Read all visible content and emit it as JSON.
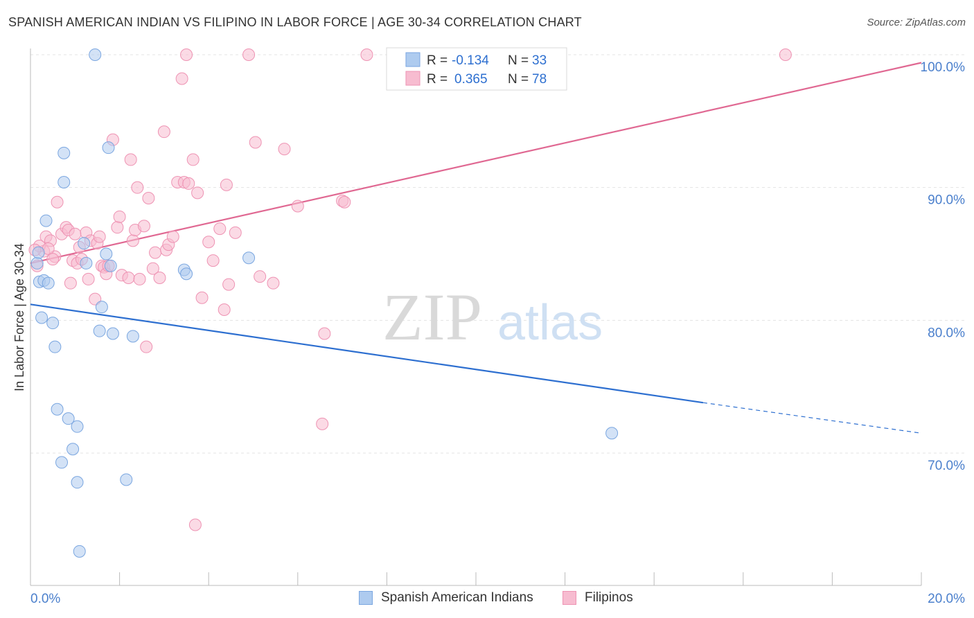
{
  "header": {
    "title": "SPANISH AMERICAN INDIAN VS FILIPINO IN LABOR FORCE | AGE 30-34 CORRELATION CHART",
    "source": "Source: ZipAtlas.com"
  },
  "watermark": {
    "zip": "ZIP",
    "atlas": "atlas"
  },
  "legend_stats": [
    {
      "r_label": "R =",
      "r_value": "-0.134",
      "n_label": "N =",
      "n_value": "33"
    },
    {
      "r_label": "R =",
      "r_value": "0.365",
      "n_label": "N =",
      "n_value": "78"
    }
  ],
  "colors": {
    "blue_fill": "#aecbef",
    "blue_stroke": "#7aa6e0",
    "blue_line": "#2d6fd0",
    "pink_fill": "#f7bcd0",
    "pink_stroke": "#ee93b3",
    "pink_line": "#e06892",
    "axis_label": "#4a7fcc",
    "grid": "#e3e3e3"
  },
  "chart_data": {
    "type": "scatter",
    "title": "SPANISH AMERICAN INDIAN VS FILIPINO IN LABOR FORCE | AGE 30-34 CORRELATION CHART",
    "xlabel": "",
    "ylabel": "In Labor Force | Age 30-34",
    "xlim": [
      0,
      20
    ],
    "ylim": [
      61,
      101
    ],
    "x_tick_labels": [
      "0.0%",
      "20.0%"
    ],
    "y_ticks": [
      70,
      80,
      90,
      100
    ],
    "y_tick_labels": [
      "70.0%",
      "80.0%",
      "90.0%",
      "100.0%"
    ],
    "grid": true,
    "legend_position": "bottom",
    "series": [
      {
        "name": "Spanish American Indians",
        "color": "#aecbef",
        "r": -0.134,
        "n": 33,
        "trend": {
          "x0": 0,
          "y0": 81.2,
          "x1": 15.1,
          "y1": 73.8,
          "dash_x1": 20,
          "dash_y1": 71.5
        },
        "points": [
          [
            0.15,
            84.3
          ],
          [
            0.2,
            82.9
          ],
          [
            0.3,
            83.0
          ],
          [
            0.4,
            82.8
          ],
          [
            0.25,
            80.2
          ],
          [
            0.5,
            79.8
          ],
          [
            0.55,
            78.0
          ],
          [
            0.35,
            87.5
          ],
          [
            0.75,
            92.6
          ],
          [
            0.75,
            90.4
          ],
          [
            1.45,
            100.0
          ],
          [
            1.75,
            93.0
          ],
          [
            1.2,
            85.8
          ],
          [
            1.25,
            84.3
          ],
          [
            1.7,
            85.0
          ],
          [
            1.8,
            84.1
          ],
          [
            1.6,
            81.0
          ],
          [
            1.55,
            79.2
          ],
          [
            1.85,
            79.0
          ],
          [
            2.3,
            78.8
          ],
          [
            3.45,
            83.8
          ],
          [
            3.5,
            83.5
          ],
          [
            4.9,
            84.7
          ],
          [
            0.6,
            73.3
          ],
          [
            0.85,
            72.6
          ],
          [
            1.05,
            72.0
          ],
          [
            0.95,
            70.3
          ],
          [
            0.7,
            69.3
          ],
          [
            1.05,
            67.8
          ],
          [
            2.15,
            68.0
          ],
          [
            1.1,
            62.6
          ],
          [
            13.05,
            71.5
          ],
          [
            0.18,
            85.1
          ]
        ]
      },
      {
        "name": "Filipinos",
        "color": "#f7bcd0",
        "r": 0.365,
        "n": 78,
        "trend": {
          "x0": 0,
          "y0": 84.3,
          "x1": 20,
          "y1": 99.4
        },
        "points": [
          [
            0.15,
            84.1
          ],
          [
            0.3,
            85.2
          ],
          [
            0.35,
            86.3
          ],
          [
            0.45,
            86.0
          ],
          [
            0.2,
            85.6
          ],
          [
            0.55,
            84.8
          ],
          [
            0.6,
            88.9
          ],
          [
            0.7,
            86.5
          ],
          [
            0.8,
            87.0
          ],
          [
            0.85,
            86.8
          ],
          [
            0.9,
            82.8
          ],
          [
            0.95,
            84.5
          ],
          [
            1.05,
            84.3
          ],
          [
            1.1,
            85.5
          ],
          [
            1.15,
            84.6
          ],
          [
            1.25,
            86.6
          ],
          [
            1.3,
            83.1
          ],
          [
            1.35,
            86.0
          ],
          [
            1.45,
            81.6
          ],
          [
            1.5,
            85.8
          ],
          [
            1.55,
            86.3
          ],
          [
            1.6,
            84.1
          ],
          [
            1.65,
            84.0
          ],
          [
            1.7,
            83.5
          ],
          [
            1.75,
            84.1
          ],
          [
            1.85,
            93.6
          ],
          [
            1.95,
            87.0
          ],
          [
            2.0,
            87.8
          ],
          [
            2.05,
            83.4
          ],
          [
            2.2,
            83.2
          ],
          [
            2.25,
            92.1
          ],
          [
            2.3,
            86.0
          ],
          [
            2.35,
            86.8
          ],
          [
            2.4,
            90.0
          ],
          [
            2.45,
            83.1
          ],
          [
            2.55,
            87.1
          ],
          [
            2.6,
            78.0
          ],
          [
            2.65,
            89.2
          ],
          [
            2.75,
            83.9
          ],
          [
            2.8,
            85.1
          ],
          [
            2.9,
            83.2
          ],
          [
            3.0,
            94.2
          ],
          [
            3.05,
            85.3
          ],
          [
            3.1,
            85.7
          ],
          [
            3.2,
            86.3
          ],
          [
            3.3,
            90.4
          ],
          [
            3.4,
            98.2
          ],
          [
            3.45,
            90.4
          ],
          [
            3.5,
            100.0
          ],
          [
            3.55,
            90.3
          ],
          [
            3.65,
            92.1
          ],
          [
            3.75,
            89.6
          ],
          [
            3.85,
            81.7
          ],
          [
            4.0,
            85.9
          ],
          [
            4.1,
            84.5
          ],
          [
            4.25,
            86.9
          ],
          [
            4.35,
            80.8
          ],
          [
            4.4,
            90.2
          ],
          [
            4.45,
            82.7
          ],
          [
            4.6,
            86.6
          ],
          [
            4.9,
            100.0
          ],
          [
            5.05,
            93.4
          ],
          [
            5.15,
            83.3
          ],
          [
            5.45,
            82.8
          ],
          [
            5.7,
            92.9
          ],
          [
            6.0,
            88.6
          ],
          [
            6.55,
            72.2
          ],
          [
            6.6,
            79.0
          ],
          [
            7.0,
            89.0
          ],
          [
            7.05,
            88.9
          ],
          [
            7.55,
            100.0
          ],
          [
            8.9,
            100.0
          ],
          [
            16.95,
            100.0
          ],
          [
            0.1,
            85.3
          ],
          [
            0.4,
            85.4
          ],
          [
            1.0,
            86.5
          ],
          [
            0.5,
            84.6
          ],
          [
            3.7,
            64.6
          ]
        ]
      }
    ]
  }
}
